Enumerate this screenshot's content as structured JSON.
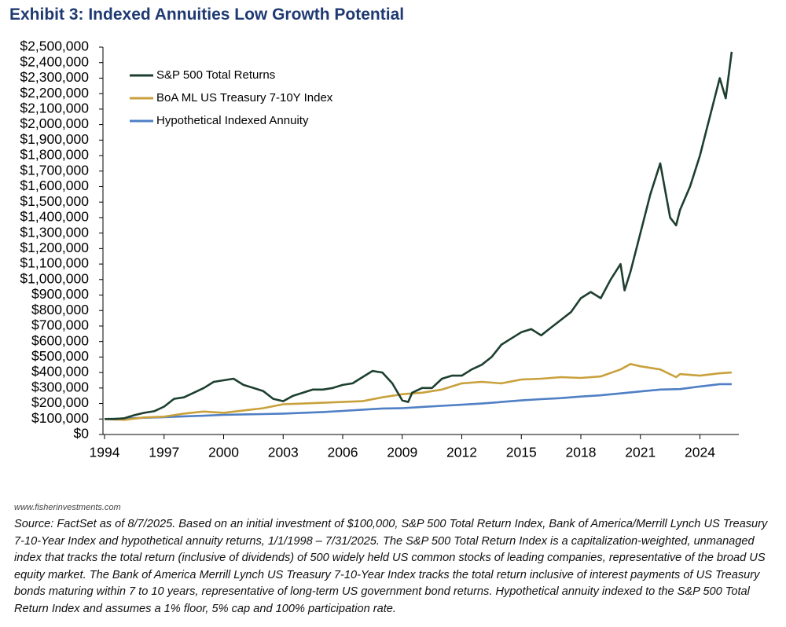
{
  "chart_data": {
    "type": "line",
    "title": "Exhibit 3: Indexed Annuities Low Growth Potential",
    "xlim": [
      1994,
      2025.7
    ],
    "xticks": [
      1994,
      1997,
      2000,
      2003,
      2006,
      2009,
      2012,
      2015,
      2018,
      2021,
      2024
    ],
    "ylim": [
      0,
      2500000
    ],
    "yticks": [
      {
        "value": 0,
        "label": "$0"
      },
      {
        "value": 100000,
        "label": "$100,000"
      },
      {
        "value": 200000,
        "label": "$200,000"
      },
      {
        "value": 300000,
        "label": "$300,000"
      },
      {
        "value": 400000,
        "label": "$400,000"
      },
      {
        "value": 500000,
        "label": "$500,000"
      },
      {
        "value": 600000,
        "label": "$600,000"
      },
      {
        "value": 700000,
        "label": "$700,000"
      },
      {
        "value": 800000,
        "label": "$800,000"
      },
      {
        "value": 900000,
        "label": "$900,000"
      },
      {
        "value": 1000000,
        "label": "$1,000,000"
      },
      {
        "value": 1100000,
        "label": "$1,100,000"
      },
      {
        "value": 1200000,
        "label": "$1,200,000"
      },
      {
        "value": 1300000,
        "label": "$1,300,000"
      },
      {
        "value": 1400000,
        "label": "$1,400,000"
      },
      {
        "value": 1500000,
        "label": "$1,500,000"
      },
      {
        "value": 1600000,
        "label": "$1,600,000"
      },
      {
        "value": 1700000,
        "label": "$1,700,000"
      },
      {
        "value": 1800000,
        "label": "$1,800,000"
      },
      {
        "value": 1900000,
        "label": "$1,900,000"
      },
      {
        "value": 2000000,
        "label": "$2,000,000"
      },
      {
        "value": 2100000,
        "label": "$2,100,000"
      },
      {
        "value": 2200000,
        "label": "$2,200,000"
      },
      {
        "value": 2300000,
        "label": "$2,300,000"
      },
      {
        "value": 2400000,
        "label": "$2,400,000"
      },
      {
        "value": 2500000,
        "label": "$2,500,000"
      }
    ],
    "grid": false,
    "legend": "top-left",
    "series": [
      {
        "name": "S&P 500 Total Returns",
        "color": "#1d3f2f",
        "x": [
          1994,
          1994.5,
          1995,
          1995.5,
          1996,
          1996.5,
          1997,
          1997.5,
          1998,
          1998.5,
          1999,
          1999.5,
          2000,
          2000.5,
          2001,
          2001.5,
          2002,
          2002.5,
          2003,
          2003.5,
          2004,
          2004.5,
          2005,
          2005.5,
          2006,
          2006.5,
          2007,
          2007.5,
          2008,
          2008.5,
          2009,
          2009.3,
          2009.5,
          2010,
          2010.5,
          2011,
          2011.5,
          2012,
          2012.5,
          2013,
          2013.5,
          2014,
          2014.5,
          2015,
          2015.5,
          2016,
          2016.5,
          2017,
          2017.5,
          2018,
          2018.5,
          2019,
          2019.5,
          2020,
          2020.2,
          2020.5,
          2021,
          2021.5,
          2022,
          2022.5,
          2022.8,
          2023,
          2023.5,
          2024,
          2024.5,
          2025,
          2025.3,
          2025.6
        ],
        "values": [
          100000,
          100000,
          105000,
          125000,
          140000,
          150000,
          180000,
          230000,
          240000,
          270000,
          300000,
          340000,
          350000,
          360000,
          320000,
          300000,
          280000,
          230000,
          215000,
          250000,
          270000,
          290000,
          290000,
          300000,
          320000,
          330000,
          370000,
          410000,
          400000,
          330000,
          220000,
          210000,
          270000,
          300000,
          300000,
          360000,
          380000,
          380000,
          420000,
          450000,
          500000,
          580000,
          620000,
          660000,
          680000,
          640000,
          690000,
          740000,
          790000,
          880000,
          920000,
          880000,
          1000000,
          1100000,
          930000,
          1050000,
          1300000,
          1550000,
          1750000,
          1400000,
          1350000,
          1450000,
          1600000,
          1800000,
          2050000,
          2300000,
          2170000,
          2470000
        ]
      },
      {
        "name": "BoA ML US Treasury 7-10Y Index",
        "color": "#c9a13c",
        "x": [
          1994,
          1995,
          1996,
          1997,
          1998,
          1999,
          2000,
          2001,
          2002,
          2003,
          2004,
          2005,
          2006,
          2007,
          2008,
          2009,
          2010,
          2011,
          2012,
          2013,
          2014,
          2015,
          2016,
          2017,
          2018,
          2019,
          2020,
          2020.5,
          2021,
          2022,
          2022.8,
          2023,
          2024,
          2025,
          2025.6
        ],
        "values": [
          100000,
          95000,
          110000,
          115000,
          135000,
          148000,
          140000,
          155000,
          170000,
          195000,
          200000,
          205000,
          210000,
          215000,
          240000,
          260000,
          270000,
          290000,
          330000,
          340000,
          330000,
          355000,
          360000,
          370000,
          365000,
          375000,
          420000,
          455000,
          440000,
          420000,
          370000,
          390000,
          380000,
          395000,
          400000
        ]
      },
      {
        "name": "Hypothetical Indexed Annuity",
        "color": "#4f7fc4",
        "x": [
          1994,
          1995,
          1996,
          1997,
          1998,
          1999,
          2000,
          2001,
          2002,
          2003,
          2004,
          2005,
          2006,
          2007,
          2008,
          2009,
          2010,
          2011,
          2012,
          2013,
          2014,
          2015,
          2016,
          2017,
          2018,
          2019,
          2020,
          2021,
          2022,
          2023,
          2024,
          2025,
          2025.6
        ],
        "values": [
          100000,
          103000,
          108000,
          112000,
          117000,
          121000,
          127000,
          130000,
          132000,
          135000,
          140000,
          145000,
          152000,
          160000,
          168000,
          170000,
          178000,
          185000,
          192000,
          200000,
          210000,
          220000,
          228000,
          235000,
          245000,
          253000,
          265000,
          278000,
          290000,
          293000,
          310000,
          325000,
          325000
        ]
      }
    ]
  },
  "footer": {
    "website": "www.fisherinvestments.com",
    "source": "Source: FactSet as of 8/7/2025. Based on an initial investment of $100,000, S&P 500 Total Return Index, Bank of America/Merrill Lynch US Treasury 7-10-Year Index and hypothetical annuity returns, 1/1/1998 – 7/31/2025. The S&P 500 Total Return Index is a capitalization-weighted, unmanaged index that tracks the total return (inclusive of dividends) of 500 widely held US common stocks of leading companies, representative of the broad US equity market. The Bank of America Merrill Lynch US Treasury 7-10-Year Index tracks the total return inclusive of interest payments of US Treasury bonds maturing within 7 to 10 years, representative of long-term US government bond returns. Hypothetical annuity indexed to the S&P 500 Total Return Index and assumes a 1% floor, 5% cap and 100% participation rate."
  }
}
